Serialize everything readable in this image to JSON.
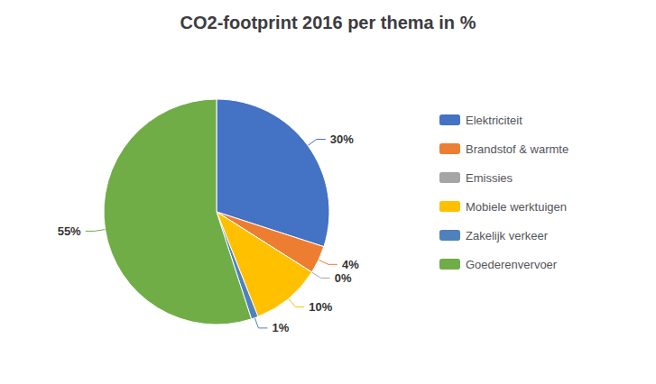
{
  "chart_data": {
    "type": "pie",
    "title": "CO2-footprint 2016 per thema in %",
    "categories": [
      "Elektriciteit",
      "Brandstof & warmte",
      "Emissies",
      "Mobiele werktuigen",
      "Zakelijk verkeer",
      "Goederenvervoer"
    ],
    "values": [
      30,
      4,
      0,
      10,
      1,
      55
    ],
    "value_labels": [
      "30%",
      "4%",
      "0%",
      "10%",
      "1%",
      "55%"
    ],
    "colors": [
      "#4472C4",
      "#ED7D31",
      "#A5A5A5",
      "#FFC000",
      "#4F81BD",
      "#70AD47"
    ],
    "data_labels": true,
    "legend": "right"
  }
}
